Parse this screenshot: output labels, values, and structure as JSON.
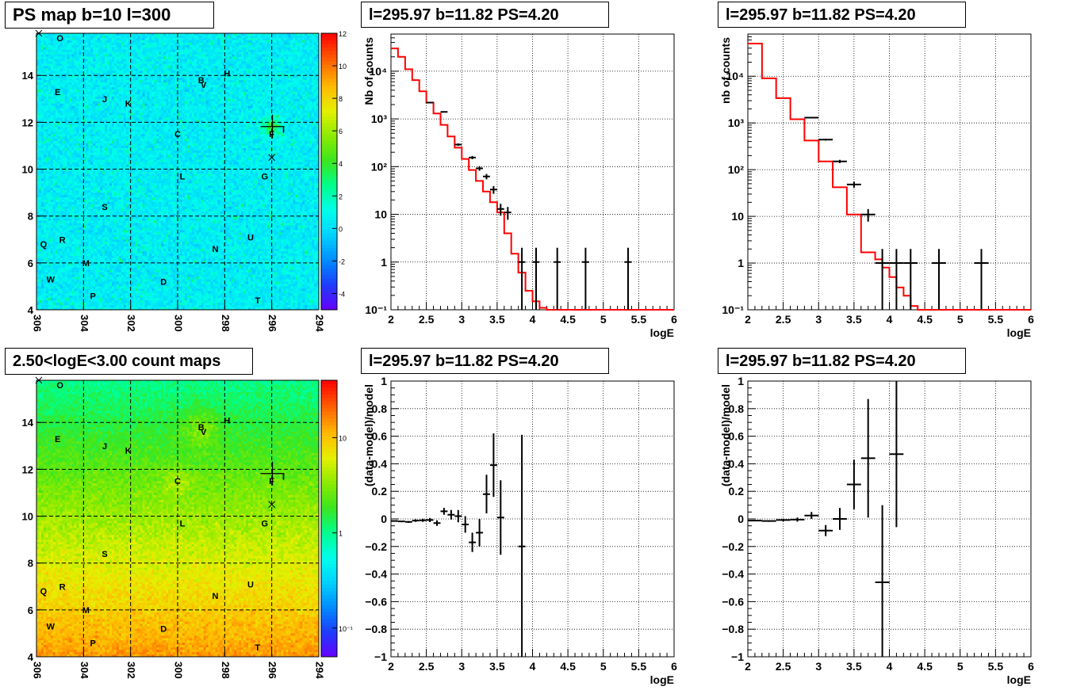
{
  "pads": {
    "ps_map": {
      "title": "PS map b=10 l=300"
    },
    "count_map": {
      "title": "2.50<logE<3.00 count maps"
    },
    "spec1": {
      "title": "l=295.97 b=11.82 PS=4.20"
    },
    "spec2": {
      "title": "l=295.97 b=11.82 PS=4.20"
    },
    "res1": {
      "title": "l=295.97 b=11.82 PS=4.20"
    },
    "res2": {
      "title": "l=295.97 b=11.82 PS=4.20"
    }
  },
  "colors": {
    "model_line": "#ff0000",
    "data_points": "#000000",
    "grid": "#000000"
  },
  "chart_data": [
    {
      "id": "ps_map",
      "type": "heatmap",
      "title": "PS map b=10 l=300",
      "xlabel": "",
      "ylabel": "",
      "xlim": [
        306,
        294
      ],
      "ylim": [
        4,
        15.8
      ],
      "x_ticks": [
        306,
        304,
        302,
        300,
        298,
        296,
        294
      ],
      "y_ticks": [
        4,
        6,
        8,
        10,
        12,
        14
      ],
      "colorbar": {
        "ticks": [
          -4,
          -2,
          0,
          2,
          4,
          6,
          8,
          10,
          12
        ],
        "range": [
          -5,
          12
        ],
        "scale": "linear"
      },
      "background_value": 0.5,
      "sources": [
        {
          "label": "O",
          "l": 305.0,
          "b": 15.6
        },
        {
          "label": "E",
          "l": 305.1,
          "b": 13.3
        },
        {
          "label": "J",
          "l": 303.1,
          "b": 13.0
        },
        {
          "label": "K",
          "l": 302.1,
          "b": 12.8
        },
        {
          "label": "B",
          "l": 299.0,
          "b": 13.8
        },
        {
          "label": "V",
          "l": 298.9,
          "b": 13.6
        },
        {
          "label": "H",
          "l": 297.9,
          "b": 14.1
        },
        {
          "label": "C",
          "l": 300.0,
          "b": 11.5
        },
        {
          "label": "F",
          "l": 296.0,
          "b": 11.5
        },
        {
          "label": "I",
          "l": 295.5,
          "b": 11.7
        },
        {
          "label": "L",
          "l": 299.8,
          "b": 9.7
        },
        {
          "label": "G",
          "l": 296.3,
          "b": 9.7
        },
        {
          "label": "S",
          "l": 303.1,
          "b": 8.4
        },
        {
          "label": "Q",
          "l": 305.7,
          "b": 6.8
        },
        {
          "label": "R",
          "l": 304.9,
          "b": 7.0
        },
        {
          "label": "U",
          "l": 296.9,
          "b": 7.1
        },
        {
          "label": "N",
          "l": 298.4,
          "b": 6.6
        },
        {
          "label": "M",
          "l": 303.9,
          "b": 6.0
        },
        {
          "label": "W",
          "l": 305.4,
          "b": 5.3
        },
        {
          "label": "D",
          "l": 300.6,
          "b": 5.2
        },
        {
          "label": "P",
          "l": 303.6,
          "b": 4.6
        },
        {
          "label": "T",
          "l": 296.6,
          "b": 4.4
        }
      ],
      "crosses": [
        {
          "l": 305.9,
          "b": 15.8
        },
        {
          "l": 296.0,
          "b": 10.5
        }
      ],
      "ps_marker": {
        "l": 295.97,
        "b": 11.82
      }
    },
    {
      "id": "count_map",
      "type": "heatmap",
      "title": "2.50<logE<3.00 count maps",
      "xlabel": "",
      "ylabel": "",
      "xlim": [
        306,
        294
      ],
      "ylim": [
        4,
        15.8
      ],
      "x_ticks": [
        306,
        304,
        302,
        300,
        298,
        296,
        294
      ],
      "y_ticks": [
        4,
        6,
        8,
        10,
        12,
        14
      ],
      "colorbar": {
        "ticks": [
          0.1,
          1,
          10
        ],
        "tick_labels": [
          "10⁻¹",
          "1",
          "10"
        ],
        "range": [
          0.05,
          40
        ],
        "scale": "log"
      },
      "sources": [
        {
          "label": "O",
          "l": 305.0,
          "b": 15.6
        },
        {
          "label": "E",
          "l": 305.1,
          "b": 13.3
        },
        {
          "label": "J",
          "l": 303.1,
          "b": 13.0
        },
        {
          "label": "K",
          "l": 302.1,
          "b": 12.8
        },
        {
          "label": "B",
          "l": 299.0,
          "b": 13.8
        },
        {
          "label": "V",
          "l": 298.9,
          "b": 13.6
        },
        {
          "label": "H",
          "l": 297.9,
          "b": 14.1
        },
        {
          "label": "C",
          "l": 300.0,
          "b": 11.5
        },
        {
          "label": "F",
          "l": 296.0,
          "b": 11.5
        },
        {
          "label": "I",
          "l": 295.5,
          "b": 11.7
        },
        {
          "label": "L",
          "l": 299.8,
          "b": 9.7
        },
        {
          "label": "G",
          "l": 296.3,
          "b": 9.7
        },
        {
          "label": "S",
          "l": 303.1,
          "b": 8.4
        },
        {
          "label": "Q",
          "l": 305.7,
          "b": 6.8
        },
        {
          "label": "R",
          "l": 304.9,
          "b": 7.0
        },
        {
          "label": "U",
          "l": 296.9,
          "b": 7.1
        },
        {
          "label": "N",
          "l": 298.4,
          "b": 6.6
        },
        {
          "label": "M",
          "l": 303.9,
          "b": 6.0
        },
        {
          "label": "W",
          "l": 305.4,
          "b": 5.3
        },
        {
          "label": "D",
          "l": 300.6,
          "b": 5.2
        },
        {
          "label": "P",
          "l": 303.6,
          "b": 4.6
        },
        {
          "label": "T",
          "l": 296.6,
          "b": 4.4
        }
      ],
      "crosses": [
        {
          "l": 305.9,
          "b": 15.8
        },
        {
          "l": 296.0,
          "b": 10.5
        }
      ],
      "ps_marker": {
        "l": 295.97,
        "b": 11.82
      }
    },
    {
      "id": "spec1",
      "type": "line",
      "title": "l=295.97 b=11.82 PS=4.20",
      "xlabel": "logE",
      "ylabel": "Nb of counts",
      "xlim": [
        2,
        6
      ],
      "ylim": [
        0.1,
        60000
      ],
      "yscale": "log",
      "x_ticks": [
        2,
        2.5,
        3,
        3.5,
        4,
        4.5,
        5,
        5.5,
        6
      ],
      "x_tick_labels": [
        "2",
        "2.5",
        "3",
        "3.5",
        "4",
        "4.5",
        "5",
        "5.5",
        "6"
      ],
      "y_ticks": [
        0.1,
        1,
        10,
        100,
        1000,
        10000
      ],
      "y_tick_labels": [
        "10⁻¹",
        "1",
        "10",
        "10²",
        "10³",
        "10⁴"
      ],
      "grid": true,
      "model": {
        "edges": [
          2.0,
          2.1,
          2.2,
          2.3,
          2.4,
          2.5,
          2.6,
          2.7,
          2.8,
          2.9,
          3.0,
          3.1,
          3.2,
          3.3,
          3.4,
          3.5,
          3.6,
          3.7,
          3.8,
          3.9,
          4.0,
          4.1,
          4.2,
          6.0
        ],
        "values": [
          30000,
          20000,
          11000,
          6500,
          3800,
          2200,
          1300,
          750,
          430,
          250,
          145,
          85,
          50,
          30,
          18,
          11,
          4,
          1.5,
          0.6,
          0.25,
          0.15,
          0.11,
          0.1
        ]
      },
      "data": [
        {
          "x": 2.55,
          "y": 2200,
          "xerr": 0.05,
          "yerr": 47
        },
        {
          "x": 2.75,
          "y": 1400,
          "xerr": 0.05,
          "yerr": 37
        },
        {
          "x": 2.95,
          "y": 290,
          "xerr": 0.05,
          "yerr": 17
        },
        {
          "x": 3.15,
          "y": 155,
          "xerr": 0.05,
          "yerr": 12
        },
        {
          "x": 3.25,
          "y": 92,
          "xerr": 0.05,
          "yerr": 10
        },
        {
          "x": 3.35,
          "y": 62,
          "xerr": 0.05,
          "yerr": 8
        },
        {
          "x": 3.45,
          "y": 33,
          "xerr": 0.05,
          "yerr": 6
        },
        {
          "x": 3.55,
          "y": 13,
          "xerr": 0.05,
          "yerr": 3.6
        },
        {
          "x": 3.65,
          "y": 11,
          "xerr": 0.05,
          "yerr": 3.3
        },
        {
          "x": 3.85,
          "y": 1,
          "xerr": 0.05,
          "yerr": 0.999
        },
        {
          "x": 4.05,
          "y": 1,
          "xerr": 0.05,
          "yerr": 0.999
        },
        {
          "x": 4.35,
          "y": 1,
          "xerr": 0.05,
          "yerr": 0.999
        },
        {
          "x": 4.75,
          "y": 1,
          "xerr": 0.05,
          "yerr": 0.999
        },
        {
          "x": 5.35,
          "y": 1,
          "xerr": 0.05,
          "yerr": 0.999
        }
      ]
    },
    {
      "id": "spec2",
      "type": "line",
      "title": "l=295.97 b=11.82 PS=4.20",
      "xlabel": "logE",
      "ylabel": "nb of counts",
      "xlim": [
        2,
        6
      ],
      "ylim": [
        0.1,
        80000
      ],
      "yscale": "log",
      "x_ticks": [
        2,
        2.5,
        3,
        3.5,
        4,
        4.5,
        5,
        5.5,
        6
      ],
      "x_tick_labels": [
        "2",
        "2.5",
        "3",
        "3.5",
        "4",
        "4.5",
        "5",
        "5.5",
        "6"
      ],
      "y_ticks": [
        0.1,
        1,
        10,
        100,
        1000,
        10000
      ],
      "y_tick_labels": [
        "10⁻¹",
        "1",
        "10",
        "10²",
        "10³",
        "10⁴"
      ],
      "grid": true,
      "model": {
        "edges": [
          2.0,
          2.2,
          2.4,
          2.6,
          2.8,
          3.0,
          3.2,
          3.4,
          3.6,
          3.8,
          3.9,
          4.0,
          4.1,
          4.2,
          4.3,
          4.4,
          6.0
        ],
        "values": [
          50000,
          9000,
          3400,
          1200,
          420,
          150,
          42,
          11,
          1.7,
          1.2,
          0.8,
          0.5,
          0.3,
          0.2,
          0.12,
          0.1
        ]
      },
      "data": [
        {
          "x": 2.9,
          "y": 1300,
          "xerr": 0.1,
          "yerr": 36
        },
        {
          "x": 3.1,
          "y": 440,
          "xerr": 0.1,
          "yerr": 21
        },
        {
          "x": 3.3,
          "y": 150,
          "xerr": 0.1,
          "yerr": 12
        },
        {
          "x": 3.5,
          "y": 48,
          "xerr": 0.1,
          "yerr": 7
        },
        {
          "x": 3.7,
          "y": 11,
          "xerr": 0.1,
          "yerr": 3.3
        },
        {
          "x": 3.9,
          "y": 1,
          "xerr": 0.1,
          "yerr": 0.999
        },
        {
          "x": 4.1,
          "y": 1,
          "xerr": 0.1,
          "yerr": 0.999
        },
        {
          "x": 4.3,
          "y": 1,
          "xerr": 0.1,
          "yerr": 0.999
        },
        {
          "x": 4.7,
          "y": 1,
          "xerr": 0.1,
          "yerr": 0.999
        },
        {
          "x": 5.3,
          "y": 1,
          "xerr": 0.1,
          "yerr": 0.999
        }
      ]
    },
    {
      "id": "res1",
      "type": "scatter",
      "title": "l=295.97 b=11.82 PS=4.20",
      "xlabel": "logE",
      "ylabel": "(data-model)/model",
      "xlim": [
        2,
        6
      ],
      "ylim": [
        -1,
        1
      ],
      "x_ticks": [
        2,
        2.5,
        3,
        3.5,
        4,
        4.5,
        5,
        5.5,
        6
      ],
      "x_tick_labels": [
        "2",
        "2.5",
        "3",
        "3.5",
        "4",
        "4.5",
        "5",
        "5.5",
        "6"
      ],
      "y_ticks": [
        -1,
        -0.8,
        -0.6,
        -0.4,
        -0.2,
        0,
        0.2,
        0.4,
        0.6,
        0.8,
        1
      ],
      "y_tick_labels": [
        "−1",
        "−0.8",
        "−0.6",
        "−0.4",
        "−0.2",
        "0",
        "0.2",
        "0.4",
        "0.6",
        "0.8",
        "1"
      ],
      "grid": true,
      "data": [
        {
          "x": 2.05,
          "y": -0.015,
          "xerr": 0.05,
          "yerr": 0.005
        },
        {
          "x": 2.15,
          "y": -0.018,
          "xerr": 0.05,
          "yerr": 0.006
        },
        {
          "x": 2.25,
          "y": -0.022,
          "xerr": 0.05,
          "yerr": 0.007
        },
        {
          "x": 2.35,
          "y": -0.012,
          "xerr": 0.05,
          "yerr": 0.009
        },
        {
          "x": 2.45,
          "y": -0.01,
          "xerr": 0.05,
          "yerr": 0.012
        },
        {
          "x": 2.55,
          "y": -0.008,
          "xerr": 0.05,
          "yerr": 0.015
        },
        {
          "x": 2.65,
          "y": -0.03,
          "xerr": 0.05,
          "yerr": 0.02
        },
        {
          "x": 2.75,
          "y": 0.055,
          "xerr": 0.05,
          "yerr": 0.025
        },
        {
          "x": 2.85,
          "y": 0.03,
          "xerr": 0.05,
          "yerr": 0.035
        },
        {
          "x": 2.95,
          "y": 0.02,
          "xerr": 0.05,
          "yerr": 0.045
        },
        {
          "x": 3.05,
          "y": -0.04,
          "xerr": 0.05,
          "yerr": 0.06
        },
        {
          "x": 3.15,
          "y": -0.17,
          "xerr": 0.05,
          "yerr": 0.07
        },
        {
          "x": 3.25,
          "y": -0.1,
          "xerr": 0.05,
          "yerr": 0.1
        },
        {
          "x": 3.35,
          "y": 0.18,
          "xerr": 0.05,
          "yerr": 0.14
        },
        {
          "x": 3.45,
          "y": 0.39,
          "xerr": 0.05,
          "yerr": 0.23
        },
        {
          "x": 3.55,
          "y": 0.01,
          "xerr": 0.05,
          "yerr": 0.27
        },
        {
          "x": 3.85,
          "y": -0.2,
          "xerr": 0.05,
          "yerr": 0.81
        }
      ]
    },
    {
      "id": "res2",
      "type": "scatter",
      "title": "l=295.97 b=11.82 PS=4.20",
      "xlabel": "logE",
      "ylabel": "(data-model)/model",
      "xlim": [
        2,
        6
      ],
      "ylim": [
        -1,
        1
      ],
      "x_ticks": [
        2,
        2.5,
        3,
        3.5,
        4,
        4.5,
        5,
        5.5,
        6
      ],
      "x_tick_labels": [
        "2",
        "2.5",
        "3",
        "3.5",
        "4",
        "4.5",
        "5",
        "5.5",
        "6"
      ],
      "y_ticks": [
        -1,
        -0.8,
        -0.6,
        -0.4,
        -0.2,
        0,
        0.2,
        0.4,
        0.6,
        0.8,
        1
      ],
      "y_tick_labels": [
        "−1",
        "−0.8",
        "−0.6",
        "−0.4",
        "−0.2",
        "0",
        "0.2",
        "0.4",
        "0.6",
        "0.8",
        "1"
      ],
      "grid": true,
      "data": [
        {
          "x": 2.1,
          "y": -0.012,
          "xerr": 0.1,
          "yerr": 0.004
        },
        {
          "x": 2.3,
          "y": -0.015,
          "xerr": 0.1,
          "yerr": 0.006
        },
        {
          "x": 2.5,
          "y": -0.008,
          "xerr": 0.1,
          "yerr": 0.009
        },
        {
          "x": 2.7,
          "y": -0.005,
          "xerr": 0.1,
          "yerr": 0.015
        },
        {
          "x": 2.9,
          "y": 0.025,
          "xerr": 0.1,
          "yerr": 0.025
        },
        {
          "x": 3.1,
          "y": -0.085,
          "xerr": 0.1,
          "yerr": 0.04
        },
        {
          "x": 3.3,
          "y": 0.0,
          "xerr": 0.1,
          "yerr": 0.08
        },
        {
          "x": 3.5,
          "y": 0.25,
          "xerr": 0.1,
          "yerr": 0.18
        },
        {
          "x": 3.7,
          "y": 0.44,
          "xerr": 0.1,
          "yerr": 0.43
        },
        {
          "x": 3.9,
          "y": -0.46,
          "xerr": 0.1,
          "yerr": 0.56
        },
        {
          "x": 4.1,
          "y": 0.47,
          "xerr": 0.1,
          "yerr": 0.53
        }
      ]
    }
  ]
}
